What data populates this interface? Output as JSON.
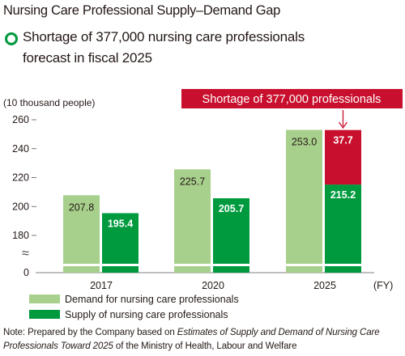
{
  "title": "Nursing Care Professional Supply–Demand Gap",
  "subtitle_lines": [
    "Shortage of 377,000 nursing care professionals",
    "forecast in fiscal 2025"
  ],
  "note_prefix": "Note: Prepared by the Company based on ",
  "note_italic": "Estimates of Supply and Demand of Nursing Care Professionals Toward 2025",
  "note_suffix": " of the Ministry of Health, Labour and Welfare",
  "colors": {
    "demand": "#a8d08d",
    "supply": "#009a3e",
    "shortage": "#c8102e",
    "icon": "#009a3e"
  },
  "chart_data": {
    "type": "bar",
    "categories": [
      "2017",
      "2020",
      "2025"
    ],
    "series": [
      {
        "name": "Demand for nursing care professionals",
        "values": [
          207.8,
          225.7,
          253.0
        ],
        "labels": [
          "207.8",
          "225.7",
          "253.0"
        ]
      },
      {
        "name": "Supply of nursing care professionals",
        "values": [
          195.4,
          205.7,
          215.2
        ],
        "labels": [
          "195.4",
          "205.7",
          "215.2"
        ]
      }
    ],
    "shortage": {
      "category": "2025",
      "value": 37.7,
      "label": "37.7",
      "callout": "Shortage of 377,000 professionals"
    },
    "ylabel": "(10 thousand people)",
    "xlabel": "(FY)",
    "yticks": [
      "0",
      "180",
      "200",
      "220",
      "240",
      "260"
    ],
    "ylim": [
      180,
      260
    ],
    "axis_break": true,
    "legend_position": "bottom-left"
  }
}
